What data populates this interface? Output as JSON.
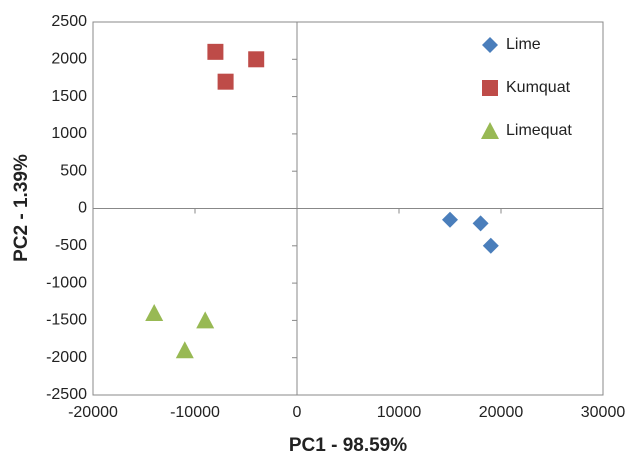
{
  "chart_data": {
    "type": "scatter",
    "xlabel": "PC1 - 98.59%",
    "ylabel": "PC2 - 1.39%",
    "xlim": [
      -20000,
      30000
    ],
    "xticks": [
      -20000,
      -10000,
      0,
      10000,
      20000,
      30000
    ],
    "ylim": [
      -2500,
      2500
    ],
    "yticks": [
      -2500,
      -2000,
      -1500,
      -1000,
      -500,
      0,
      500,
      1000,
      1500,
      2000,
      2500
    ],
    "legend": "upper right",
    "series": [
      {
        "name": "Lime",
        "color": "#4a7ebb",
        "marker": "diamond",
        "x": [
          15000,
          18000,
          19000
        ],
        "values": [
          -150,
          -200,
          -500
        ]
      },
      {
        "name": "Kumquat",
        "color": "#be4b48",
        "marker": "square",
        "x": [
          -8000,
          -7000,
          -4000
        ],
        "values": [
          2100,
          1700,
          2000
        ]
      },
      {
        "name": "Limequat",
        "color": "#98b954",
        "marker": "triangle",
        "x": [
          -14000,
          -11000,
          -9000
        ],
        "values": [
          -1400,
          -1900,
          -1500
        ]
      }
    ]
  }
}
